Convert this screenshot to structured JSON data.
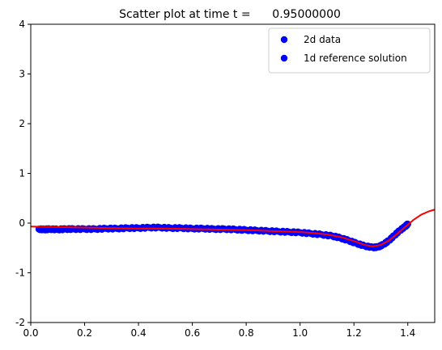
{
  "chart_data": {
    "type": "scatter",
    "title": "Scatter plot at time t =      0.95000000",
    "xlabel": "",
    "ylabel": "",
    "xlim": [
      0,
      1.5
    ],
    "ylim": [
      -2,
      4
    ],
    "xticks": [
      "0.0",
      "0.2",
      "0.4",
      "0.6",
      "0.8",
      "1.0",
      "1.2",
      "1.4"
    ],
    "yticks": [
      "-2",
      "-1",
      "0",
      "1",
      "2",
      "3",
      "4"
    ],
    "legend": {
      "placement": "top-right"
    },
    "series": [
      {
        "name": "2d data",
        "kind": "scatter",
        "color": "#0000ff",
        "points": [
          [
            0.03,
            -0.12
          ],
          [
            0.05,
            -0.13
          ],
          [
            0.07,
            -0.12
          ],
          [
            0.1,
            -0.13
          ],
          [
            0.13,
            -0.12
          ],
          [
            0.16,
            -0.12
          ],
          [
            0.2,
            -0.12
          ],
          [
            0.24,
            -0.12
          ],
          [
            0.28,
            -0.11
          ],
          [
            0.32,
            -0.11
          ],
          [
            0.36,
            -0.1
          ],
          [
            0.4,
            -0.1
          ],
          [
            0.44,
            -0.09
          ],
          [
            0.48,
            -0.09
          ],
          [
            0.52,
            -0.1
          ],
          [
            0.56,
            -0.1
          ],
          [
            0.6,
            -0.11
          ],
          [
            0.64,
            -0.11
          ],
          [
            0.68,
            -0.12
          ],
          [
            0.72,
            -0.12
          ],
          [
            0.76,
            -0.13
          ],
          [
            0.8,
            -0.14
          ],
          [
            0.84,
            -0.15
          ],
          [
            0.88,
            -0.16
          ],
          [
            0.92,
            -0.17
          ],
          [
            0.96,
            -0.18
          ],
          [
            1.0,
            -0.19
          ],
          [
            1.04,
            -0.21
          ],
          [
            1.08,
            -0.23
          ],
          [
            1.12,
            -0.26
          ],
          [
            1.15,
            -0.3
          ],
          [
            1.18,
            -0.35
          ],
          [
            1.21,
            -0.41
          ],
          [
            1.24,
            -0.46
          ],
          [
            1.27,
            -0.49
          ],
          [
            1.29,
            -0.48
          ],
          [
            1.31,
            -0.43
          ],
          [
            1.33,
            -0.35
          ],
          [
            1.35,
            -0.25
          ],
          [
            1.37,
            -0.15
          ],
          [
            1.39,
            -0.07
          ],
          [
            1.4,
            -0.02
          ]
        ]
      },
      {
        "name": "1d reference solution",
        "kind": "line",
        "color": "#ff0000",
        "points": [
          [
            0.0,
            -0.07
          ],
          [
            0.1,
            -0.08
          ],
          [
            0.2,
            -0.09
          ],
          [
            0.3,
            -0.1
          ],
          [
            0.4,
            -0.11
          ],
          [
            0.5,
            -0.11
          ],
          [
            0.6,
            -0.12
          ],
          [
            0.7,
            -0.13
          ],
          [
            0.8,
            -0.14
          ],
          [
            0.9,
            -0.16
          ],
          [
            1.0,
            -0.18
          ],
          [
            1.05,
            -0.2
          ],
          [
            1.1,
            -0.23
          ],
          [
            1.15,
            -0.28
          ],
          [
            1.2,
            -0.36
          ],
          [
            1.24,
            -0.44
          ],
          [
            1.27,
            -0.47
          ],
          [
            1.3,
            -0.44
          ],
          [
            1.33,
            -0.35
          ],
          [
            1.36,
            -0.22
          ],
          [
            1.39,
            -0.08
          ],
          [
            1.42,
            0.06
          ],
          [
            1.45,
            0.17
          ],
          [
            1.48,
            0.24
          ],
          [
            1.5,
            0.27
          ]
        ]
      }
    ]
  }
}
